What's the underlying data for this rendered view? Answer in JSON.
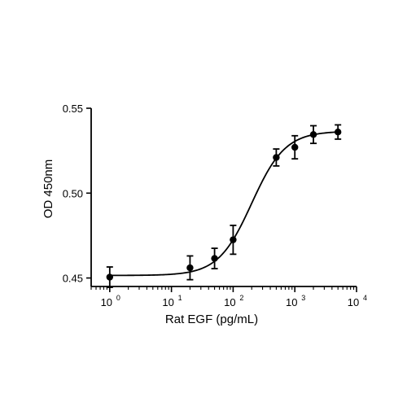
{
  "chart_data": {
    "type": "scatter",
    "xlabel": "Rat EGF (pg/mL)",
    "ylabel": "OD 450nm",
    "x_scale": "log",
    "xlim": [
      0.5,
      10000
    ],
    "ylim": [
      0.445,
      0.55
    ],
    "x_ticks": [
      {
        "value": 1,
        "base": "10",
        "exp": "0"
      },
      {
        "value": 10,
        "base": "10",
        "exp": "1"
      },
      {
        "value": 100,
        "base": "10",
        "exp": "2"
      },
      {
        "value": 1000,
        "base": "10",
        "exp": "3"
      },
      {
        "value": 10000,
        "base": "10",
        "exp": "4"
      }
    ],
    "y_ticks": [
      {
        "value": 0.45,
        "label": "0.45"
      },
      {
        "value": 0.5,
        "label": "0.50"
      },
      {
        "value": 0.55,
        "label": "0.55"
      }
    ],
    "grid": false,
    "series": [
      {
        "x": [
          1,
          20,
          50,
          100,
          500,
          1000,
          2000,
          5000
        ],
        "y": [
          0.4505,
          0.456,
          0.4615,
          0.4725,
          0.521,
          0.527,
          0.5345,
          0.536
        ],
        "error": [
          0.006,
          0.007,
          0.006,
          0.0085,
          0.005,
          0.0068,
          0.0052,
          0.0042
        ]
      }
    ],
    "fit_curve": {
      "model": "4PL",
      "bottom": 0.4515,
      "top": 0.5365,
      "ec50": 200,
      "hill": 1.6
    },
    "colors": {
      "marker": "#000000",
      "line": "#000000"
    }
  }
}
